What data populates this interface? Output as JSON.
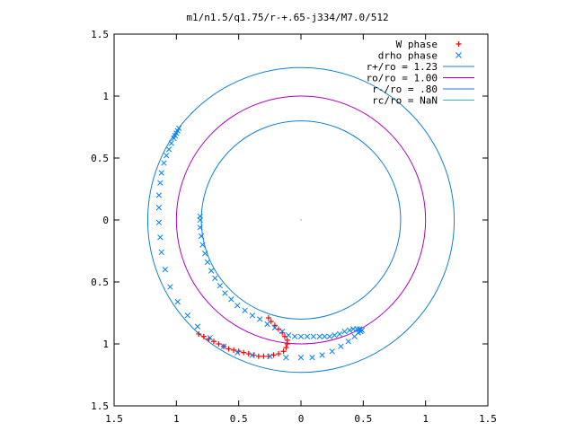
{
  "chart_data": {
    "type": "scatter",
    "title": "m1/n1.5/q1.75/r-+.65-j334/M7.0/512",
    "xlabel": "",
    "ylabel": "",
    "xlim": [
      -1.5,
      1.5
    ],
    "ylim": [
      -1.5,
      1.5
    ],
    "x_ticks": [
      -1.5,
      -1,
      -0.5,
      0,
      0.5,
      1,
      1.5
    ],
    "y_ticks": [
      -1.5,
      -1,
      -0.5,
      0,
      0.5,
      1,
      1.5
    ],
    "x_tick_labels": [
      "1.5",
      "1",
      "0.5",
      "0",
      "0.5",
      "1",
      "1.5"
    ],
    "y_tick_labels": [
      "1.5",
      "1",
      "0.5",
      "0",
      "0.5",
      "1",
      "1.5"
    ],
    "grid": false,
    "legend_position": "top-right",
    "series": [
      {
        "name": "W phase",
        "marker": "plus",
        "color": "#ff0000",
        "points": [
          [
            -0.82,
            -0.92
          ],
          [
            -0.78,
            -0.94
          ],
          [
            -0.74,
            -0.96
          ],
          [
            -0.7,
            -0.98
          ],
          [
            -0.66,
            -1.0
          ],
          [
            -0.62,
            -1.02
          ],
          [
            -0.58,
            -1.04
          ],
          [
            -0.54,
            -1.05
          ],
          [
            -0.5,
            -1.06
          ],
          [
            -0.46,
            -1.07
          ],
          [
            -0.42,
            -1.08
          ],
          [
            -0.38,
            -1.09
          ],
          [
            -0.34,
            -1.1
          ],
          [
            -0.3,
            -1.1
          ],
          [
            -0.26,
            -1.1
          ],
          [
            -0.22,
            -1.09
          ],
          [
            -0.18,
            -1.08
          ],
          [
            -0.14,
            -1.06
          ],
          [
            -0.12,
            -1.03
          ],
          [
            -0.11,
            -1.0
          ],
          [
            -0.11,
            -0.97
          ],
          [
            -0.13,
            -0.94
          ],
          [
            -0.15,
            -0.91
          ],
          [
            -0.18,
            -0.88
          ],
          [
            -0.21,
            -0.85
          ],
          [
            -0.24,
            -0.82
          ],
          [
            -0.26,
            -0.79
          ]
        ]
      },
      {
        "name": "drho phase",
        "marker": "cross",
        "color": "#0080ff",
        "points": [
          [
            -0.98,
            0.74
          ],
          [
            -0.99,
            0.72
          ],
          [
            -1.0,
            0.7
          ],
          [
            -1.01,
            0.68
          ],
          [
            -1.02,
            0.66
          ],
          [
            -1.04,
            0.62
          ],
          [
            -1.06,
            0.57
          ],
          [
            -1.08,
            0.52
          ],
          [
            -1.1,
            0.46
          ],
          [
            -1.12,
            0.38
          ],
          [
            -1.13,
            0.3
          ],
          [
            -1.14,
            0.2
          ],
          [
            -1.14,
            0.1
          ],
          [
            -1.14,
            -0.02
          ],
          [
            -1.13,
            -0.14
          ],
          [
            -1.12,
            -0.26
          ],
          [
            -1.09,
            -0.4
          ],
          [
            -1.05,
            -0.54
          ],
          [
            -0.99,
            -0.66
          ],
          [
            -0.91,
            -0.77
          ],
          [
            -0.83,
            -0.86
          ],
          [
            -0.73,
            -0.95
          ],
          [
            -0.62,
            -1.02
          ],
          [
            -0.51,
            -1.07
          ],
          [
            -0.39,
            -1.09
          ],
          [
            -0.25,
            -1.1
          ],
          [
            -0.12,
            -1.11
          ],
          [
            0.0,
            -1.11
          ],
          [
            0.09,
            -1.11
          ],
          [
            0.17,
            -1.09
          ],
          [
            0.25,
            -1.06
          ],
          [
            0.32,
            -1.02
          ],
          [
            0.38,
            -0.98
          ],
          [
            0.43,
            -0.94
          ],
          [
            0.46,
            -0.91
          ],
          [
            0.48,
            -0.9
          ],
          [
            0.49,
            -0.89
          ],
          [
            0.47,
            -0.88
          ],
          [
            0.45,
            -0.88
          ],
          [
            0.42,
            -0.88
          ],
          [
            0.39,
            -0.89
          ],
          [
            0.35,
            -0.9
          ],
          [
            0.31,
            -0.92
          ],
          [
            0.27,
            -0.93
          ],
          [
            0.23,
            -0.94
          ],
          [
            0.19,
            -0.94
          ],
          [
            0.15,
            -0.94
          ],
          [
            0.1,
            -0.94
          ],
          [
            0.05,
            -0.94
          ],
          [
            0.0,
            -0.94
          ],
          [
            -0.05,
            -0.94
          ],
          [
            -0.1,
            -0.93
          ],
          [
            -0.15,
            -0.9
          ],
          [
            -0.21,
            -0.87
          ],
          [
            -0.27,
            -0.84
          ],
          [
            -0.33,
            -0.8
          ],
          [
            -0.39,
            -0.77
          ],
          [
            -0.45,
            -0.73
          ],
          [
            -0.51,
            -0.69
          ],
          [
            -0.56,
            -0.64
          ],
          [
            -0.61,
            -0.59
          ],
          [
            -0.65,
            -0.53
          ],
          [
            -0.69,
            -0.47
          ],
          [
            -0.72,
            -0.41
          ],
          [
            -0.75,
            -0.34
          ],
          [
            -0.77,
            -0.27
          ],
          [
            -0.79,
            -0.2
          ],
          [
            -0.8,
            -0.13
          ],
          [
            -0.81,
            -0.06
          ],
          [
            -0.81,
            0.0
          ],
          [
            -0.81,
            0.03
          ]
        ]
      },
      {
        "name": "r+/ro = 1.23",
        "type": "circle",
        "radius": 1.23,
        "color": "#1080d0"
      },
      {
        "name": "ro/ro = 1.00",
        "type": "circle",
        "radius": 1.0,
        "color": "#b000c0"
      },
      {
        "name": "r-/ro = .80",
        "type": "circle",
        "radius": 0.8,
        "color": "#1080d0"
      },
      {
        "name": "rc/ro = NaN",
        "type": "circle",
        "radius": null,
        "color": "#20c0e0"
      }
    ]
  }
}
